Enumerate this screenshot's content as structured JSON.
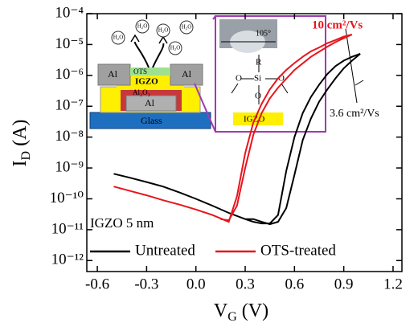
{
  "chart_data": {
    "type": "line",
    "xlabel": {
      "main": "V",
      "sub": "G",
      "rest": " (V)"
    },
    "ylabel": {
      "main": "I",
      "sub": "D",
      "rest": " (A)"
    },
    "log_y": true,
    "xlim": [
      -0.664,
      1.254
    ],
    "ylim": [
      4.4e-13,
      0.0001
    ],
    "xticks": [
      -0.6,
      -0.3,
      {
        "value": 0,
        "label": "0.0"
      },
      0.3,
      0.6,
      0.9,
      1.2
    ],
    "yticks": [
      {
        "value": 1e-12,
        "label": "10⁻¹²"
      },
      {
        "value": 1e-11,
        "label": "10⁻¹¹"
      },
      {
        "value": 1e-10,
        "label": "10⁻¹⁰"
      },
      {
        "value": 1e-09,
        "label": "10⁻⁹"
      },
      {
        "value": 1e-08,
        "label": "10⁻⁸"
      },
      {
        "value": 1e-07,
        "label": "10⁻⁷"
      },
      {
        "value": 1e-06,
        "label": "10⁻⁶"
      },
      {
        "value": 1e-05,
        "label": "10⁻⁵"
      },
      {
        "value": 0.0001,
        "label": "10⁻⁴"
      }
    ],
    "legend": "bottom",
    "series": [
      {
        "name": "Untreated",
        "color": "#000000",
        "x": [
          -0.5,
          -0.4,
          -0.3,
          -0.2,
          -0.1,
          0,
          0.1,
          0.2,
          0.3,
          0.35,
          0.4,
          0.45,
          0.5,
          0.55,
          0.6,
          0.65,
          0.7,
          0.75,
          0.8,
          0.85,
          0.9,
          0.95,
          1.0,
          0.95,
          0.9,
          0.85,
          0.8,
          0.75,
          0.7,
          0.65,
          0.6,
          0.55,
          0.5,
          0.45,
          0.4,
          0.35,
          0.3
        ],
        "values": [
          6.5e-10,
          4.8e-10,
          3.5e-10,
          2.5e-10,
          1.6e-10,
          1e-10,
          6e-11,
          3.5e-11,
          2.2e-11,
          1.8e-11,
          1.6e-11,
          1.6e-11,
          3e-11,
          8e-10,
          1e-08,
          6e-08,
          2e-07,
          5e-07,
          1.1e-06,
          2e-06,
          3e-06,
          4e-06,
          5e-06,
          3e-06,
          1.7e-06,
          8e-07,
          3.5e-07,
          1.4e-07,
          4e-08,
          8e-09,
          6e-10,
          5e-11,
          1.8e-11,
          1.5e-11,
          1.8e-11,
          2.2e-11,
          2.2e-11
        ]
      },
      {
        "name": "OTS-treated",
        "color": "#e8141c",
        "x": [
          -0.5,
          -0.4,
          -0.3,
          -0.2,
          -0.1,
          0,
          0.1,
          0.2,
          0.25,
          0.3,
          0.35,
          0.4,
          0.45,
          0.5,
          0.55,
          0.6,
          0.65,
          0.7,
          0.75,
          0.8,
          0.85,
          0.9,
          0.95,
          0.9,
          0.85,
          0.8,
          0.7,
          0.6,
          0.5,
          0.45,
          0.4,
          0.35,
          0.3,
          0.25,
          0.2,
          0.15
        ],
        "values": [
          2.5e-10,
          1.8e-10,
          1.3e-10,
          9e-11,
          6.5e-11,
          4.5e-11,
          3e-11,
          1.8e-11,
          1.2e-10,
          3e-09,
          3e-08,
          1.2e-07,
          3.5e-07,
          8e-07,
          1.5e-06,
          2.5e-06,
          4e-06,
          6e-06,
          8e-06,
          1.1e-05,
          1.4e-05,
          1.8e-05,
          2.1e-05,
          1.6e-05,
          1.2e-05,
          8.5e-06,
          4e-06,
          1.5e-06,
          4e-07,
          1.8e-07,
          6e-08,
          1.2e-08,
          1e-09,
          6e-11,
          2e-11,
          2.2e-11
        ]
      }
    ],
    "annotations": [
      "10 cm²/Vs",
      "3.6 cm²/Vs",
      "IGZO 5 nm"
    ],
    "inset": {
      "molecules": [
        "H₂O",
        "H₂O",
        "H₂O",
        "H₂O",
        "H₂O"
      ],
      "layers": [
        "Al",
        "Al",
        "OTS",
        "IGZO",
        "Al₂O₃",
        "Al",
        "Glass"
      ],
      "angle": "105°",
      "structure": [
        "R",
        "Si",
        "O",
        "O",
        "O",
        "IGZO"
      ]
    }
  }
}
